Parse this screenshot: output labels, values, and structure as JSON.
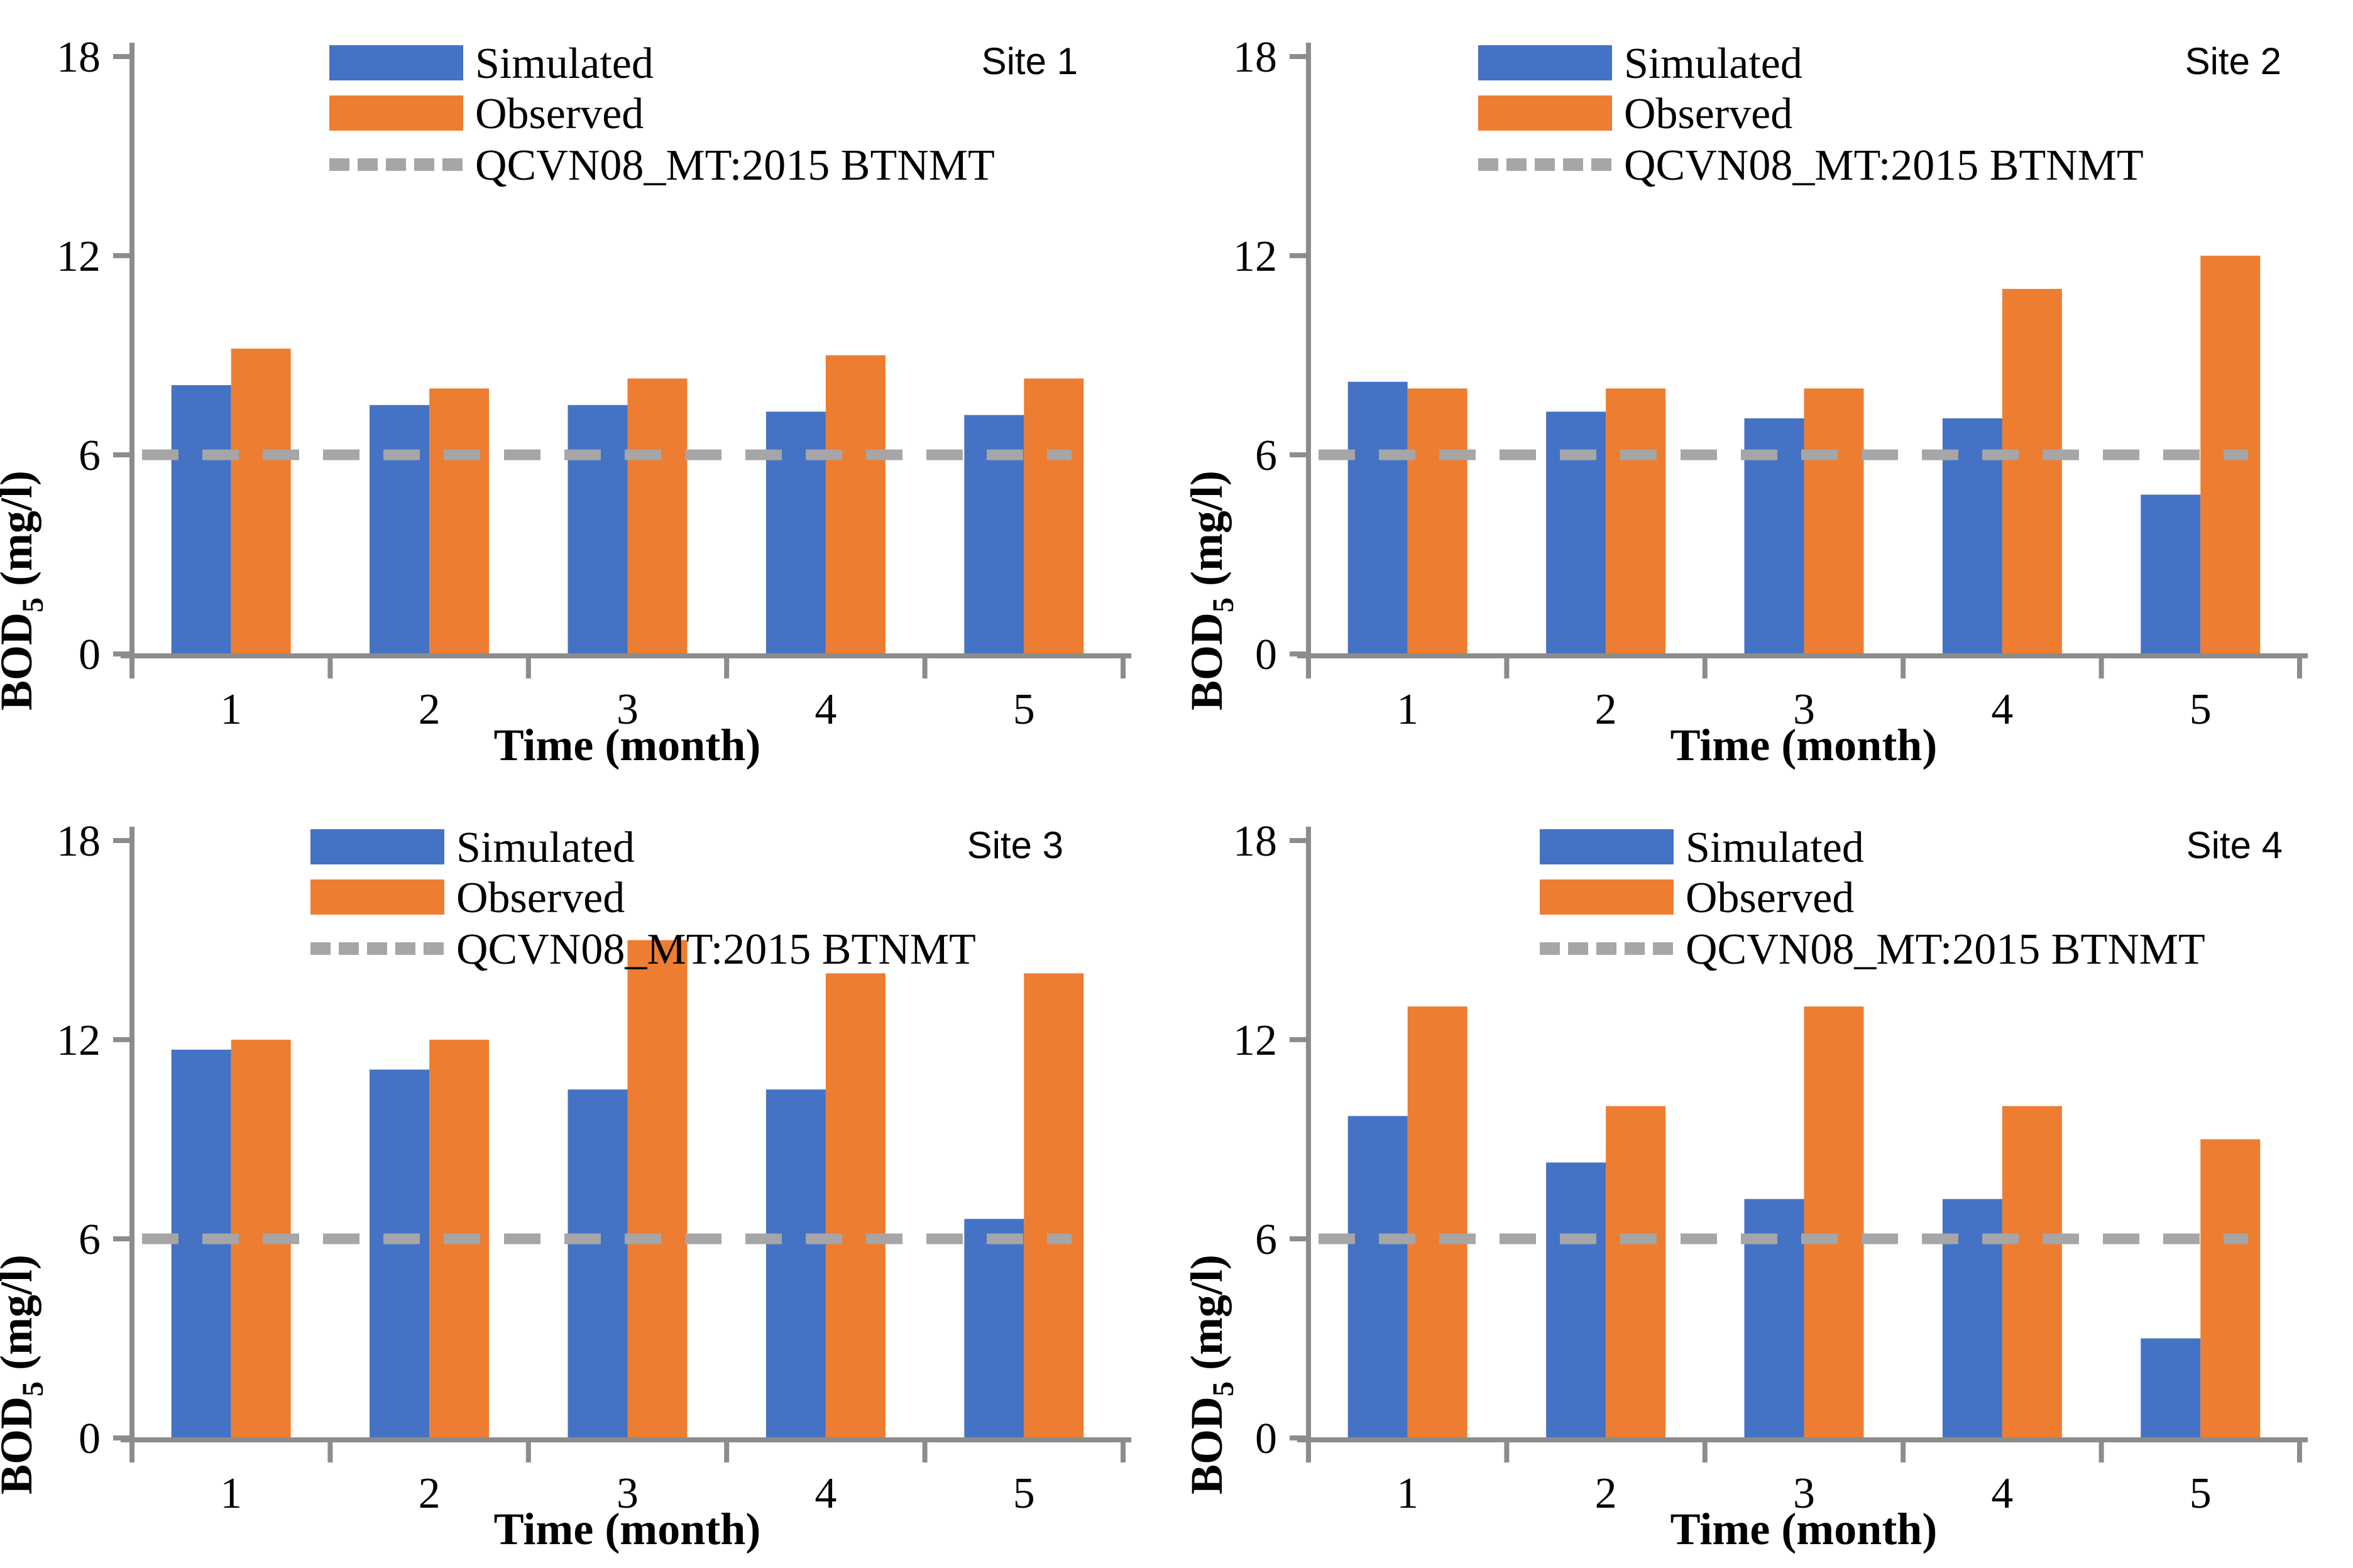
{
  "colors": {
    "simulated_blue": "#4472C4",
    "observed_orange": "#ED7D31",
    "threshold_gray": "#A6A6A6",
    "axis_gray": "#8C8C8C",
    "text_black": "#000000",
    "background": "#FFFFFF"
  },
  "legend": {
    "simulated_label": "Simulated",
    "observed_label": "Observed",
    "threshold_label": "QCVN08_MT:2015 BTNMT"
  },
  "axes": {
    "ylabel_prefix": "BOD",
    "ylabel_sub": "5",
    "ylabel_suffix": " (mg/l)",
    "ylabel_text": "BOD5 (mg/l)",
    "xlabel": "Time (month)",
    "ylim": [
      0,
      18
    ],
    "yticks": [
      "0",
      "6",
      "12",
      "18"
    ],
    "ytick_values": [
      0,
      6,
      12,
      18
    ],
    "categories": [
      "1",
      "2",
      "3",
      "4",
      "5"
    ],
    "grid": "off",
    "legend_position": "top-left-inside"
  },
  "chart_data": [
    {
      "type": "bar",
      "site": "Site 1",
      "title": "Site 1",
      "xlabel": "Time (month)",
      "ylabel": "BOD5 (mg/l)",
      "ylim": [
        0,
        18
      ],
      "yticks": [
        0,
        6,
        12,
        18
      ],
      "categories": [
        "1",
        "2",
        "3",
        "4",
        "5"
      ],
      "series": [
        {
          "name": "Simulated",
          "values": [
            8.1,
            7.5,
            7.5,
            7.3,
            7.2
          ]
        },
        {
          "name": "Observed",
          "values": [
            9.2,
            8.0,
            8.3,
            9.0,
            8.3
          ]
        }
      ],
      "threshold": {
        "label": "QCVN08_MT:2015 BTNMT",
        "value": 6
      }
    },
    {
      "type": "bar",
      "site": "Site 2",
      "title": "Site 2",
      "xlabel": "Time (month)",
      "ylabel": "BOD5 (mg/l)",
      "ylim": [
        0,
        18
      ],
      "yticks": [
        0,
        6,
        12,
        18
      ],
      "categories": [
        "1",
        "2",
        "3",
        "4",
        "5"
      ],
      "series": [
        {
          "name": "Simulated",
          "values": [
            8.2,
            7.3,
            7.1,
            7.1,
            4.8
          ]
        },
        {
          "name": "Observed",
          "values": [
            8.0,
            8.0,
            8.0,
            11.0,
            12.0
          ]
        }
      ],
      "threshold": {
        "label": "QCVN08_MT:2015 BTNMT",
        "value": 6
      }
    },
    {
      "type": "bar",
      "site": "Site 3",
      "title": "Site 3",
      "xlabel": "Time (month)",
      "ylabel": "BOD5 (mg/l)",
      "ylim": [
        0,
        18
      ],
      "yticks": [
        0,
        6,
        12,
        18
      ],
      "categories": [
        "1",
        "2",
        "3",
        "4",
        "5"
      ],
      "series": [
        {
          "name": "Simulated",
          "values": [
            11.7,
            11.1,
            10.5,
            10.5,
            6.6
          ]
        },
        {
          "name": "Observed",
          "values": [
            12.0,
            12.0,
            15.0,
            14.0,
            14.0
          ]
        }
      ],
      "threshold": {
        "label": "QCVN08_MT:2015 BTNMT",
        "value": 6
      }
    },
    {
      "type": "bar",
      "site": "Site 4",
      "title": "Site 4",
      "xlabel": "Time (month)",
      "ylabel": "BOD5 (mg/l)",
      "ylim": [
        0,
        18
      ],
      "yticks": [
        0,
        6,
        12,
        18
      ],
      "categories": [
        "1",
        "2",
        "3",
        "4",
        "5"
      ],
      "series": [
        {
          "name": "Simulated",
          "values": [
            9.7,
            8.3,
            7.2,
            7.2,
            3.0
          ]
        },
        {
          "name": "Observed",
          "values": [
            13.0,
            10.0,
            13.0,
            10.0,
            9.0
          ]
        }
      ],
      "threshold": {
        "label": "QCVN08_MT:2015 BTNMT",
        "value": 6
      }
    }
  ]
}
